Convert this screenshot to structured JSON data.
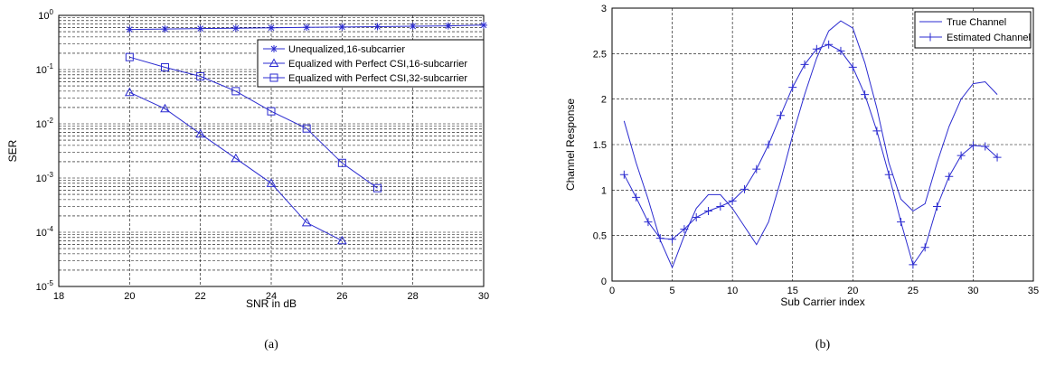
{
  "chart_data": [
    {
      "type": "line",
      "caption": "(a)",
      "xlabel": "SNR in dB",
      "ylabel": "SER",
      "xlim": [
        18,
        30
      ],
      "ylim": [
        1e-05,
        1
      ],
      "yscale": "log",
      "grid": true,
      "legend": "top-right",
      "x_ticks": [
        "18",
        "20",
        "22",
        "24",
        "26",
        "28",
        "30"
      ],
      "y_ticks": [
        {
          "base": "10",
          "exp": "0"
        },
        {
          "base": "10",
          "exp": "-1"
        },
        {
          "base": "10",
          "exp": "-2"
        },
        {
          "base": "10",
          "exp": "-3"
        },
        {
          "base": "10",
          "exp": "-4"
        },
        {
          "base": "10",
          "exp": "-5"
        }
      ],
      "series": [
        {
          "name": "Unequalized,16-subcarrier",
          "marker": "star",
          "x": [
            20,
            21,
            22,
            23,
            24,
            25,
            26,
            27,
            28,
            29,
            30
          ],
          "y": [
            0.55,
            0.56,
            0.57,
            0.58,
            0.59,
            0.6,
            0.61,
            0.62,
            0.63,
            0.64,
            0.66
          ]
        },
        {
          "name": "Equalized with Perfect CSI,16-subcarrier",
          "marker": "triangle",
          "x": [
            20,
            21,
            22,
            23,
            24,
            25,
            26
          ],
          "y": [
            0.038,
            0.019,
            0.0065,
            0.0023,
            0.0008,
            0.00015,
            7e-05
          ]
        },
        {
          "name": "Equalized with Perfect CSI,32-subcarrier",
          "marker": "square",
          "x": [
            20,
            21,
            22,
            23,
            24,
            25,
            26,
            27
          ],
          "y": [
            0.17,
            0.11,
            0.075,
            0.04,
            0.017,
            0.0082,
            0.0019,
            0.00065
          ]
        }
      ]
    },
    {
      "type": "line",
      "caption": "(b)",
      "xlabel": "Sub Carrier index",
      "ylabel": "Channel Response",
      "xlim": [
        0,
        35
      ],
      "ylim": [
        0,
        3
      ],
      "grid": true,
      "legend": "top-right",
      "x_ticks": [
        "0",
        "5",
        "10",
        "15",
        "20",
        "25",
        "30",
        "35"
      ],
      "y_ticks": [
        "0",
        "0.5",
        "1",
        "1.5",
        "2",
        "2.5",
        "3"
      ],
      "series": [
        {
          "name": "True Channel",
          "marker": "none",
          "x": [
            1,
            2,
            3,
            4,
            5,
            6,
            7,
            8,
            9,
            10,
            11,
            12,
            13,
            14,
            15,
            16,
            17,
            18,
            19,
            20,
            21,
            22,
            23,
            24,
            25,
            26,
            27,
            28,
            29,
            30,
            31,
            32
          ],
          "y": [
            1.76,
            1.3,
            0.9,
            0.45,
            0.15,
            0.5,
            0.8,
            0.95,
            0.95,
            0.8,
            0.6,
            0.4,
            0.65,
            1.1,
            1.6,
            2.05,
            2.45,
            2.75,
            2.86,
            2.78,
            2.4,
            1.9,
            1.3,
            0.9,
            0.77,
            0.85,
            1.3,
            1.7,
            2.0,
            2.17,
            2.19,
            2.05
          ]
        },
        {
          "name": "Estimated Channel",
          "marker": "plus",
          "x": [
            1,
            2,
            3,
            4,
            5,
            6,
            7,
            8,
            9,
            10,
            11,
            12,
            13,
            14,
            15,
            16,
            17,
            18,
            19,
            20,
            21,
            22,
            23,
            24,
            25,
            26,
            27,
            28,
            29,
            30,
            31,
            32
          ],
          "y": [
            1.17,
            0.92,
            0.65,
            0.47,
            0.46,
            0.57,
            0.7,
            0.77,
            0.82,
            0.88,
            1.01,
            1.23,
            1.5,
            1.82,
            2.13,
            2.38,
            2.55,
            2.6,
            2.53,
            2.35,
            2.05,
            1.65,
            1.17,
            0.65,
            0.18,
            0.37,
            0.82,
            1.15,
            1.38,
            1.49,
            1.48,
            1.36
          ]
        }
      ]
    }
  ],
  "colors": {
    "line": "#2b2bd0",
    "grid": "#000000",
    "axis": "#000000"
  }
}
